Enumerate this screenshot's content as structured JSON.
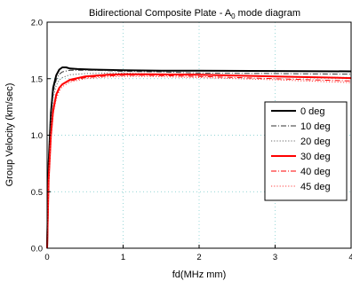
{
  "chart_data": {
    "type": "line",
    "title": "Bidirectional Composite Plate - A",
    "title_subscript": "0",
    "title_suffix": " mode diagram",
    "xlabel": "fd(MHz mm)",
    "ylabel": "Group Velocity (km/sec)",
    "xlim": [
      0,
      4
    ],
    "ylim": [
      0.0,
      2.0
    ],
    "x_ticks": [
      0,
      1,
      2,
      3,
      4
    ],
    "x_tick_labels": [
      "0",
      "1",
      "2",
      "3",
      "4"
    ],
    "y_ticks": [
      0.0,
      0.5,
      1.0,
      1.5,
      2.0
    ],
    "y_tick_labels": [
      "0.0",
      "0.5",
      "1.0",
      "1.5",
      "2.0"
    ],
    "grid": "dotted",
    "legend_position": "right",
    "series": [
      {
        "name": "0 deg",
        "color": "#000000",
        "style": "solid",
        "width": 2,
        "x": [
          0,
          0.02,
          0.05,
          0.08,
          0.12,
          0.16,
          0.2,
          0.25,
          0.3,
          0.4,
          0.6,
          1.0,
          1.5,
          2.0,
          3.0,
          4.0
        ],
        "y": [
          0.0,
          0.75,
          1.2,
          1.42,
          1.53,
          1.58,
          1.6,
          1.6,
          1.59,
          1.585,
          1.58,
          1.575,
          1.57,
          1.57,
          1.568,
          1.565
        ]
      },
      {
        "name": "10 deg",
        "color": "#333333",
        "style": "dashdot",
        "width": 1,
        "x": [
          0,
          0.02,
          0.05,
          0.08,
          0.12,
          0.16,
          0.2,
          0.3,
          0.5,
          0.8,
          1.0,
          1.5,
          2.0,
          3.0,
          4.0
        ],
        "y": [
          0.0,
          0.72,
          1.15,
          1.38,
          1.49,
          1.54,
          1.56,
          1.575,
          1.575,
          1.57,
          1.565,
          1.56,
          1.55,
          1.545,
          1.54
        ]
      },
      {
        "name": "20 deg",
        "color": "#666666",
        "style": "dotted",
        "width": 1,
        "x": [
          0,
          0.02,
          0.05,
          0.08,
          0.12,
          0.16,
          0.2,
          0.3,
          0.5,
          0.8,
          1.0,
          1.5,
          2.0,
          3.0,
          4.0
        ],
        "y": [
          0.0,
          0.68,
          1.1,
          1.33,
          1.44,
          1.49,
          1.51,
          1.535,
          1.545,
          1.55,
          1.55,
          1.54,
          1.53,
          1.52,
          1.51
        ]
      },
      {
        "name": "30 deg",
        "color": "#ff0000",
        "style": "solid",
        "width": 2,
        "x": [
          0,
          0.02,
          0.05,
          0.08,
          0.12,
          0.16,
          0.2,
          0.3,
          0.5,
          0.8,
          1.0,
          1.3,
          2.0,
          3.0,
          4.0
        ],
        "y": [
          0.0,
          0.6,
          1.0,
          1.22,
          1.36,
          1.42,
          1.45,
          1.49,
          1.52,
          1.535,
          1.54,
          1.54,
          1.535,
          1.52,
          1.505
        ]
      },
      {
        "name": "40 deg",
        "color": "#ff0000",
        "style": "dashdot",
        "width": 1,
        "x": [
          0,
          0.02,
          0.05,
          0.08,
          0.12,
          0.16,
          0.2,
          0.3,
          0.5,
          0.8,
          1.0,
          1.3,
          2.0,
          3.0,
          4.0
        ],
        "y": [
          0.0,
          0.58,
          0.98,
          1.2,
          1.34,
          1.41,
          1.45,
          1.48,
          1.51,
          1.525,
          1.53,
          1.53,
          1.52,
          1.5,
          1.48
        ]
      },
      {
        "name": "45 deg",
        "color": "#ff4040",
        "style": "dotted",
        "width": 1,
        "x": [
          0,
          0.02,
          0.05,
          0.08,
          0.12,
          0.16,
          0.2,
          0.3,
          0.5,
          0.8,
          1.0,
          1.3,
          2.0,
          3.0,
          4.0
        ],
        "y": [
          0.0,
          0.56,
          0.96,
          1.18,
          1.32,
          1.39,
          1.43,
          1.47,
          1.5,
          1.515,
          1.52,
          1.52,
          1.51,
          1.49,
          1.465
        ]
      }
    ]
  }
}
